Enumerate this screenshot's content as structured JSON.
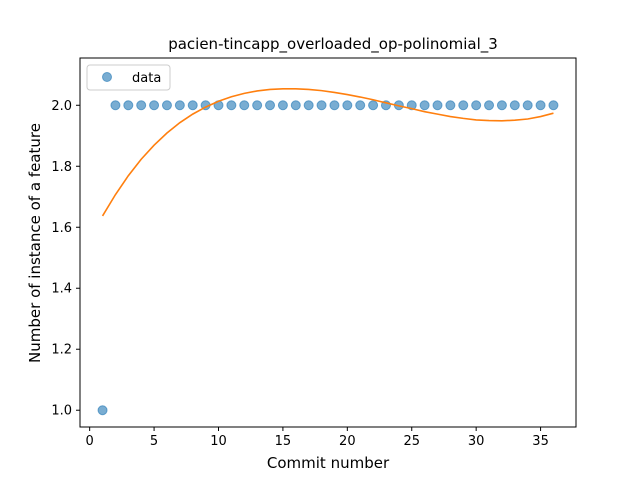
{
  "chart_data": {
    "type": "scatter",
    "title": "pacien-tincapp_overloaded_op-polinomial_3",
    "xlabel": "Commit number",
    "ylabel": "Number of instance of a feature",
    "xlim": [
      -0.75,
      37.75
    ],
    "ylim": [
      0.945,
      2.155
    ],
    "xticks": [
      0,
      5,
      10,
      15,
      20,
      25,
      30,
      35
    ],
    "yticks": [
      1.0,
      1.2,
      1.4,
      1.6,
      1.8,
      2.0
    ],
    "ytick_labels": [
      "1.0",
      "1.2",
      "1.4",
      "1.6",
      "1.8",
      "2.0"
    ],
    "grid": false,
    "legend": {
      "position": "top-left",
      "entries": [
        "data"
      ]
    },
    "series": [
      {
        "name": "data",
        "kind": "scatter",
        "color": "#1f77b4",
        "x": [
          1,
          2,
          3,
          4,
          5,
          6,
          7,
          8,
          9,
          10,
          11,
          12,
          13,
          14,
          15,
          16,
          17,
          18,
          19,
          20,
          21,
          22,
          23,
          24,
          25,
          26,
          27,
          28,
          29,
          30,
          31,
          32,
          33,
          34,
          35,
          36
        ],
        "y": [
          1,
          2,
          2,
          2,
          2,
          2,
          2,
          2,
          2,
          2,
          2,
          2,
          2,
          2,
          2,
          2,
          2,
          2,
          2,
          2,
          2,
          2,
          2,
          2,
          2,
          2,
          2,
          2,
          2,
          2,
          2,
          2,
          2,
          2,
          2,
          2
        ]
      },
      {
        "kind": "line",
        "color": "#ff7f0e",
        "x": [
          1,
          2,
          3,
          4,
          5,
          6,
          7,
          8,
          9,
          10,
          11,
          12,
          13,
          14,
          15,
          16,
          17,
          18,
          19,
          20,
          21,
          22,
          23,
          24,
          25,
          26,
          27,
          28,
          29,
          30,
          31,
          32,
          33,
          34,
          35,
          36
        ],
        "y": [
          1.637,
          1.707,
          1.769,
          1.823,
          1.869,
          1.909,
          1.943,
          1.971,
          1.994,
          2.013,
          2.028,
          2.039,
          2.047,
          2.052,
          2.054,
          2.054,
          2.052,
          2.048,
          2.042,
          2.035,
          2.027,
          2.018,
          2.008,
          1.998,
          1.989,
          1.979,
          1.971,
          1.963,
          1.957,
          1.952,
          1.95,
          1.949,
          1.951,
          1.955,
          1.963,
          1.974
        ]
      }
    ]
  }
}
